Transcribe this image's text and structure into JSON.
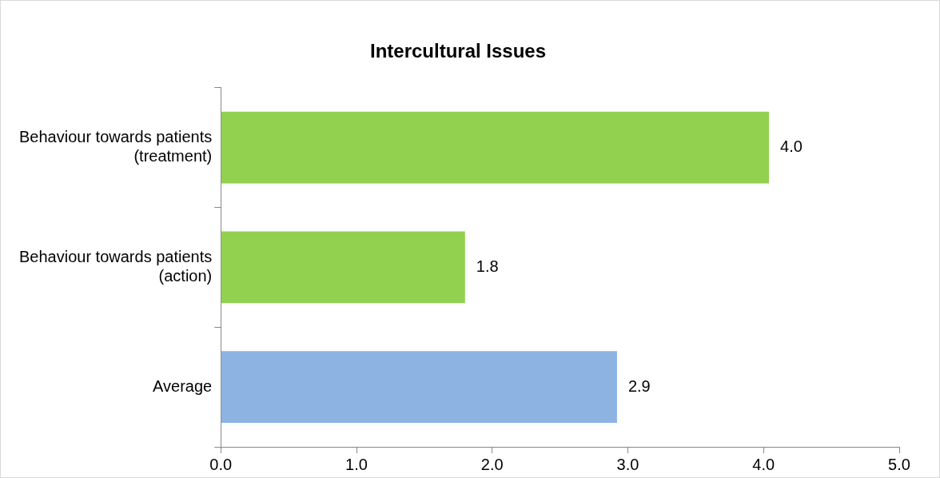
{
  "chart_data": {
    "type": "bar",
    "orientation": "horizontal",
    "title": "Intercultural Issues",
    "categories": [
      "Behaviour towards patients\n(treatment)",
      "Behaviour towards patients\n(action)",
      "Average"
    ],
    "values": [
      4.04,
      1.8,
      2.92
    ],
    "value_labels": [
      "4.0",
      "1.8",
      "2.9"
    ],
    "colors": [
      "#92d050",
      "#92d050",
      "#8db3e2"
    ],
    "xlim": [
      0,
      5
    ],
    "xticks": [
      {
        "value": 0,
        "label": "0.0"
      },
      {
        "value": 1,
        "label": "1.0"
      },
      {
        "value": 2,
        "label": "2.0"
      },
      {
        "value": 3,
        "label": "3.0"
      },
      {
        "value": 4,
        "label": "4.0"
      },
      {
        "value": 5,
        "label": "5.0"
      }
    ],
    "grid": false,
    "legend": false
  }
}
